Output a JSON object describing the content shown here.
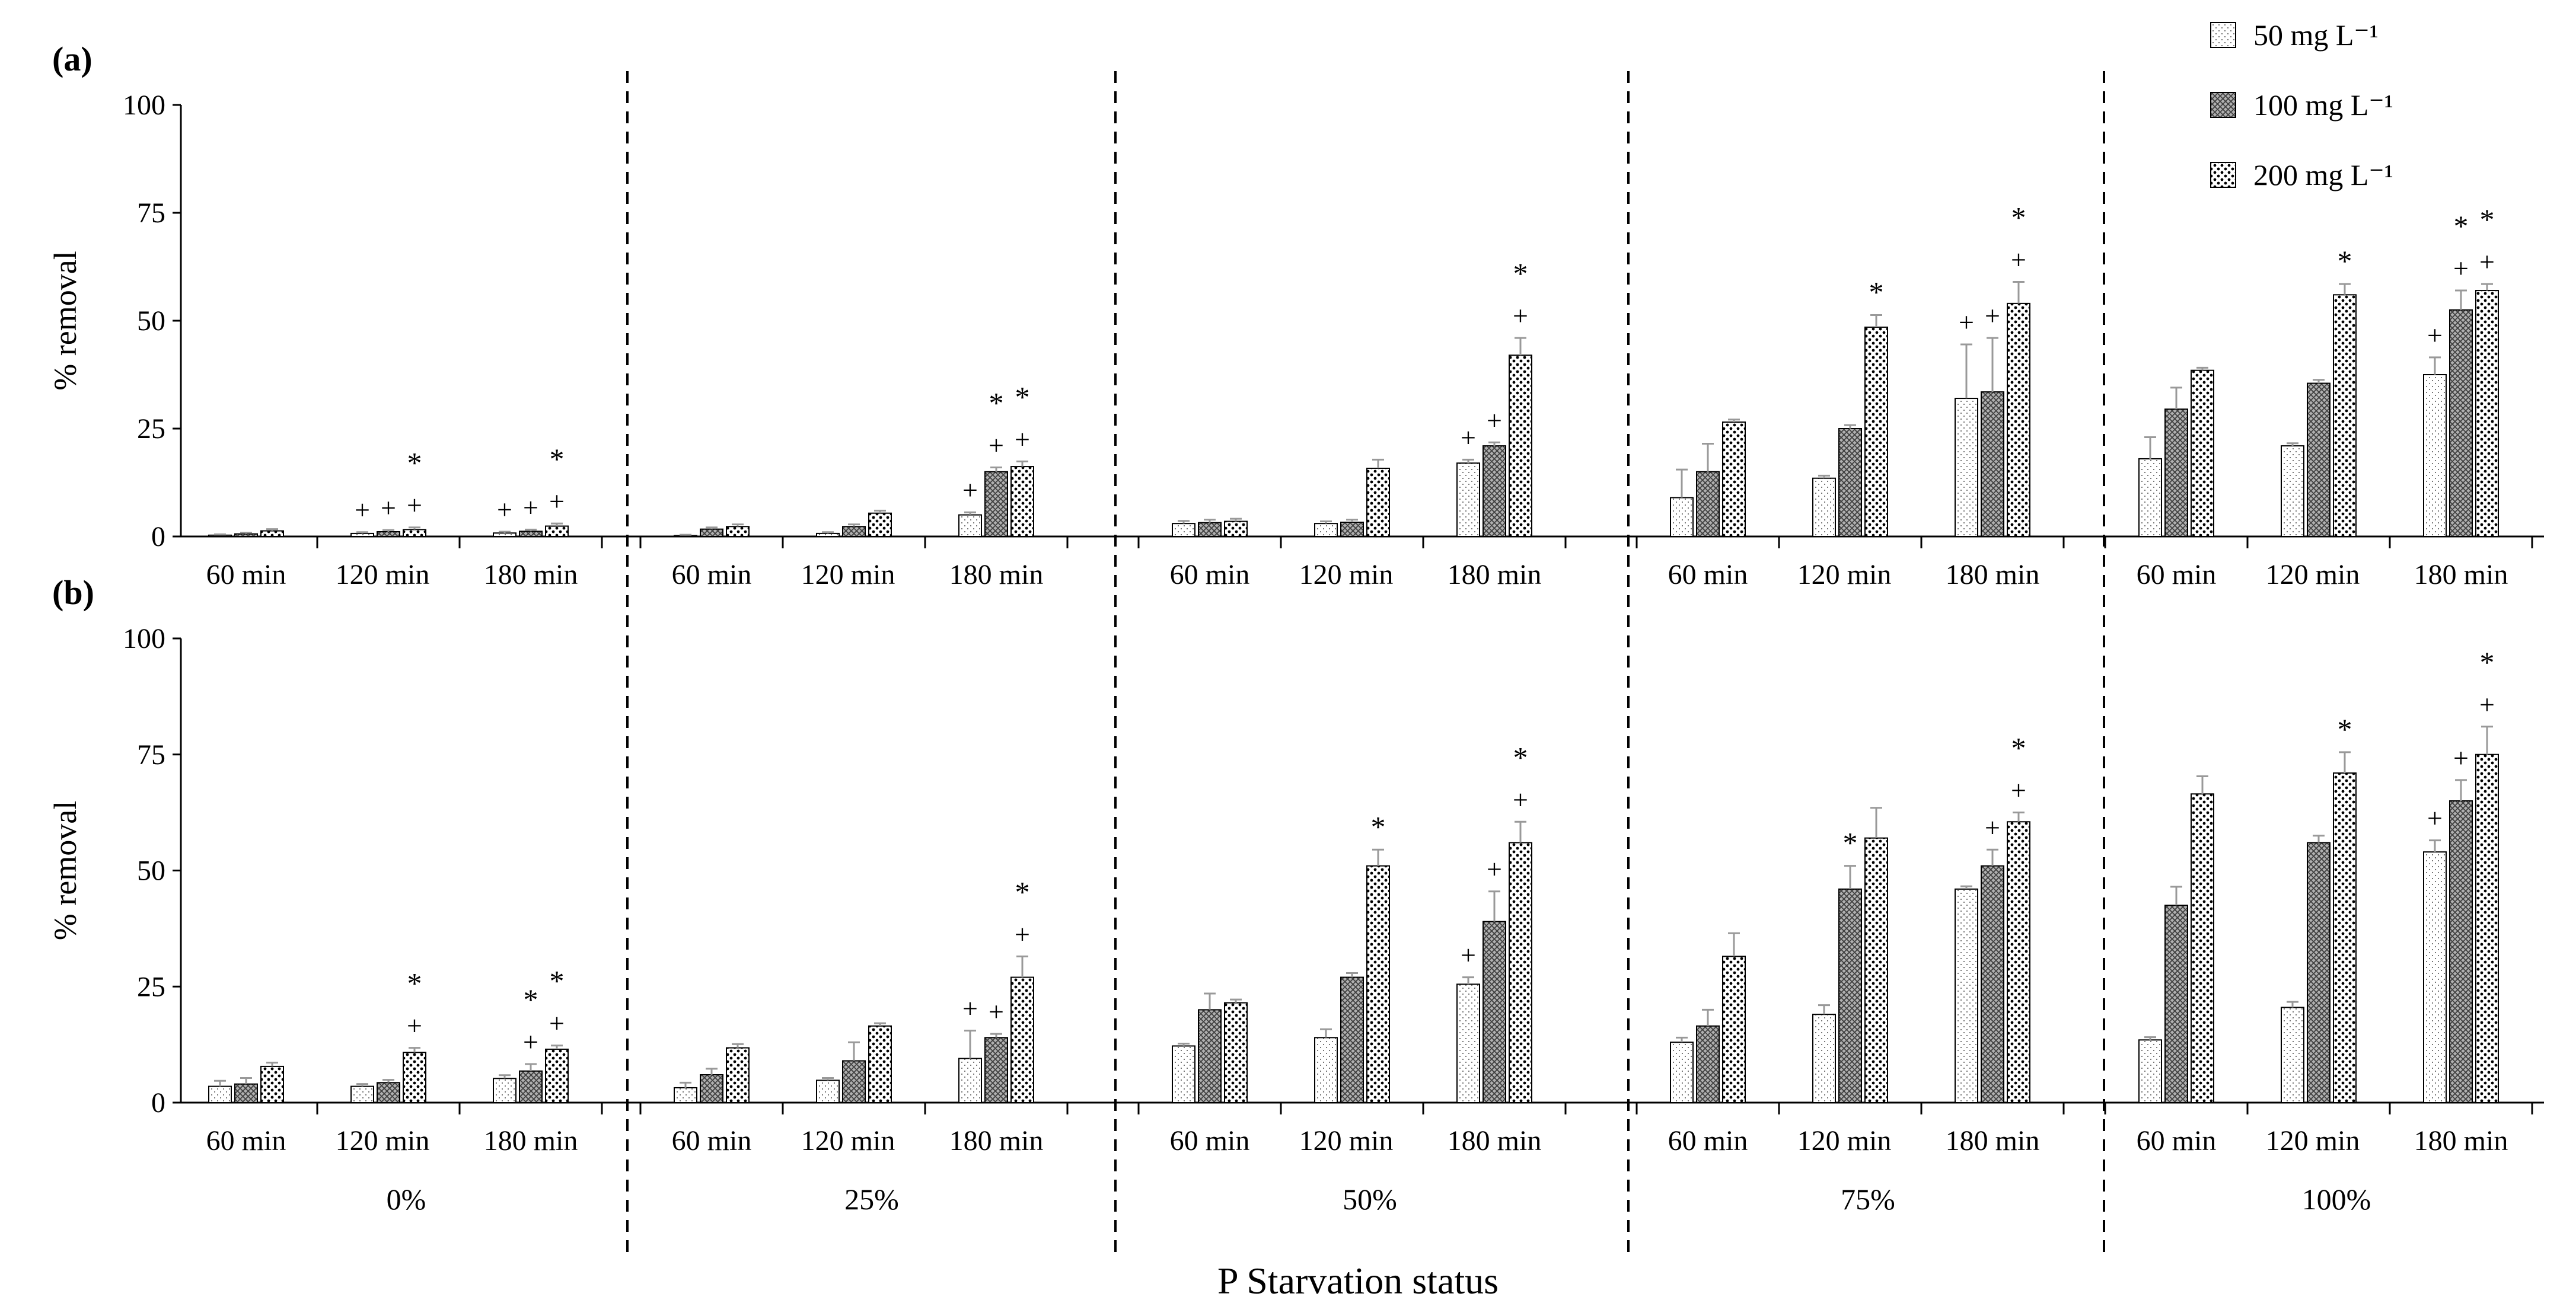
{
  "chart_data": {
    "type": "bar",
    "xlabel": "P Starvation status",
    "ylabel": "% removal",
    "ylim": [
      0,
      100
    ],
    "yticks": [
      0,
      25,
      50,
      75,
      100
    ],
    "groups": [
      "0%",
      "25%",
      "50%",
      "75%",
      "100%"
    ],
    "times": [
      "60 min",
      "120 min",
      "180 min"
    ],
    "legend": [
      {
        "label": "50 mg L⁻¹",
        "pattern": "p50"
      },
      {
        "label": "100 mg L⁻¹",
        "pattern": "p100"
      },
      {
        "label": "200 mg L⁻¹",
        "pattern": "p200"
      }
    ],
    "panels": [
      {
        "label": "(a)",
        "values": [
          [
            [
              0.3,
              0.6,
              1.3
            ],
            [
              0.7,
              1.1,
              1.6
            ],
            [
              0.8,
              1.2,
              2.4
            ]
          ],
          [
            [
              0.2,
              1.7,
              2.3
            ],
            [
              0.7,
              2.3,
              5.4
            ],
            [
              5.0,
              15.0,
              16.2
            ]
          ],
          [
            [
              3.0,
              3.2,
              3.5
            ],
            [
              3.0,
              3.3,
              15.8
            ],
            [
              17.0,
              21.0,
              42.0
            ]
          ],
          [
            [
              9.0,
              15.0,
              26.5
            ],
            [
              13.5,
              25.0,
              48.5
            ],
            [
              32.0,
              33.5,
              54.0
            ]
          ],
          [
            [
              18.0,
              29.5,
              38.5
            ],
            [
              21.0,
              35.5,
              56.0
            ],
            [
              37.5,
              52.5,
              57.0
            ]
          ]
        ],
        "errors": [
          [
            [
              0.2,
              0.3,
              0.4
            ],
            [
              0.3,
              0.4,
              0.5
            ],
            [
              0.3,
              0.4,
              0.6
            ]
          ],
          [
            [
              0.2,
              0.4,
              0.5
            ],
            [
              0.3,
              0.5,
              0.6
            ],
            [
              0.6,
              1.0,
              1.2
            ]
          ],
          [
            [
              0.6,
              0.7,
              0.6
            ],
            [
              0.5,
              0.6,
              2.0
            ],
            [
              0.8,
              0.8,
              4.0
            ]
          ],
          [
            [
              6.5,
              6.5,
              0.6
            ],
            [
              0.6,
              0.8,
              2.8
            ],
            [
              12.5,
              12.5,
              5.0
            ]
          ],
          [
            [
              5.0,
              5.0,
              0.6
            ],
            [
              0.6,
              0.8,
              2.5
            ],
            [
              4.0,
              4.5,
              1.5
            ]
          ]
        ],
        "marks": [
          [
            [
              "",
              "",
              ""
            ],
            [
              "+",
              "+",
              "* +"
            ],
            [
              "+",
              "+",
              "* +"
            ]
          ],
          [
            [
              "",
              "",
              ""
            ],
            [
              "",
              "",
              ""
            ],
            [
              "+",
              "* +",
              "* +"
            ]
          ],
          [
            [
              "",
              "",
              ""
            ],
            [
              "",
              "",
              ""
            ],
            [
              "+",
              "+",
              "* +"
            ]
          ],
          [
            [
              "",
              "",
              ""
            ],
            [
              "",
              "",
              "*"
            ],
            [
              "+",
              "+",
              "* +"
            ]
          ],
          [
            [
              "",
              "",
              ""
            ],
            [
              "",
              "",
              "*"
            ],
            [
              "+",
              "* +",
              "* +"
            ]
          ]
        ]
      },
      {
        "label": "(b)",
        "values": [
          [
            [
              3.5,
              4.0,
              7.8
            ],
            [
              3.5,
              4.3,
              10.8
            ],
            [
              5.2,
              6.8,
              11.5
            ]
          ],
          [
            [
              3.2,
              6.0,
              11.8
            ],
            [
              4.8,
              9.0,
              16.5
            ],
            [
              9.5,
              14.0,
              27.0
            ]
          ],
          [
            [
              12.2,
              20.0,
              21.5
            ],
            [
              14.0,
              27.0,
              51.0
            ],
            [
              25.5,
              39.0,
              56.0
            ]
          ],
          [
            [
              13.0,
              16.5,
              31.5
            ],
            [
              19.0,
              46.0,
              57.0
            ],
            [
              46.0,
              51.0,
              60.5
            ]
          ],
          [
            [
              13.5,
              42.5,
              66.5
            ],
            [
              20.5,
              56.0,
              71.0
            ],
            [
              54.0,
              65.0,
              75.0
            ]
          ]
        ],
        "errors": [
          [
            [
              1.2,
              1.3,
              0.8
            ],
            [
              0.5,
              0.6,
              1.0
            ],
            [
              0.7,
              1.5,
              0.8
            ]
          ],
          [
            [
              1.1,
              1.3,
              0.8
            ],
            [
              0.5,
              4.0,
              0.6
            ],
            [
              6.0,
              0.8,
              4.5
            ]
          ],
          [
            [
              0.5,
              3.5,
              0.7
            ],
            [
              1.8,
              0.9,
              3.5
            ],
            [
              1.5,
              6.5,
              4.5
            ]
          ],
          [
            [
              1.0,
              3.5,
              5.0
            ],
            [
              2.0,
              5.0,
              6.5
            ],
            [
              0.6,
              3.5,
              2.0
            ]
          ],
          [
            [
              0.6,
              4.0,
              3.8
            ],
            [
              1.2,
              1.5,
              4.5
            ],
            [
              2.5,
              4.5,
              6.0
            ]
          ]
        ],
        "marks": [
          [
            [
              "",
              "",
              ""
            ],
            [
              "",
              "",
              "* +"
            ],
            [
              "",
              "* +",
              "* +"
            ]
          ],
          [
            [
              "",
              "",
              ""
            ],
            [
              "",
              "",
              ""
            ],
            [
              "+",
              "+",
              "* +"
            ]
          ],
          [
            [
              "",
              "",
              ""
            ],
            [
              "",
              "",
              "*"
            ],
            [
              "+",
              "+",
              "* +"
            ]
          ],
          [
            [
              "",
              "",
              ""
            ],
            [
              "",
              "*",
              ""
            ],
            [
              "",
              "+",
              "* +"
            ]
          ],
          [
            [
              "",
              "",
              ""
            ],
            [
              "",
              "",
              "*"
            ],
            [
              "+",
              "+",
              "* +"
            ]
          ]
        ]
      }
    ]
  }
}
